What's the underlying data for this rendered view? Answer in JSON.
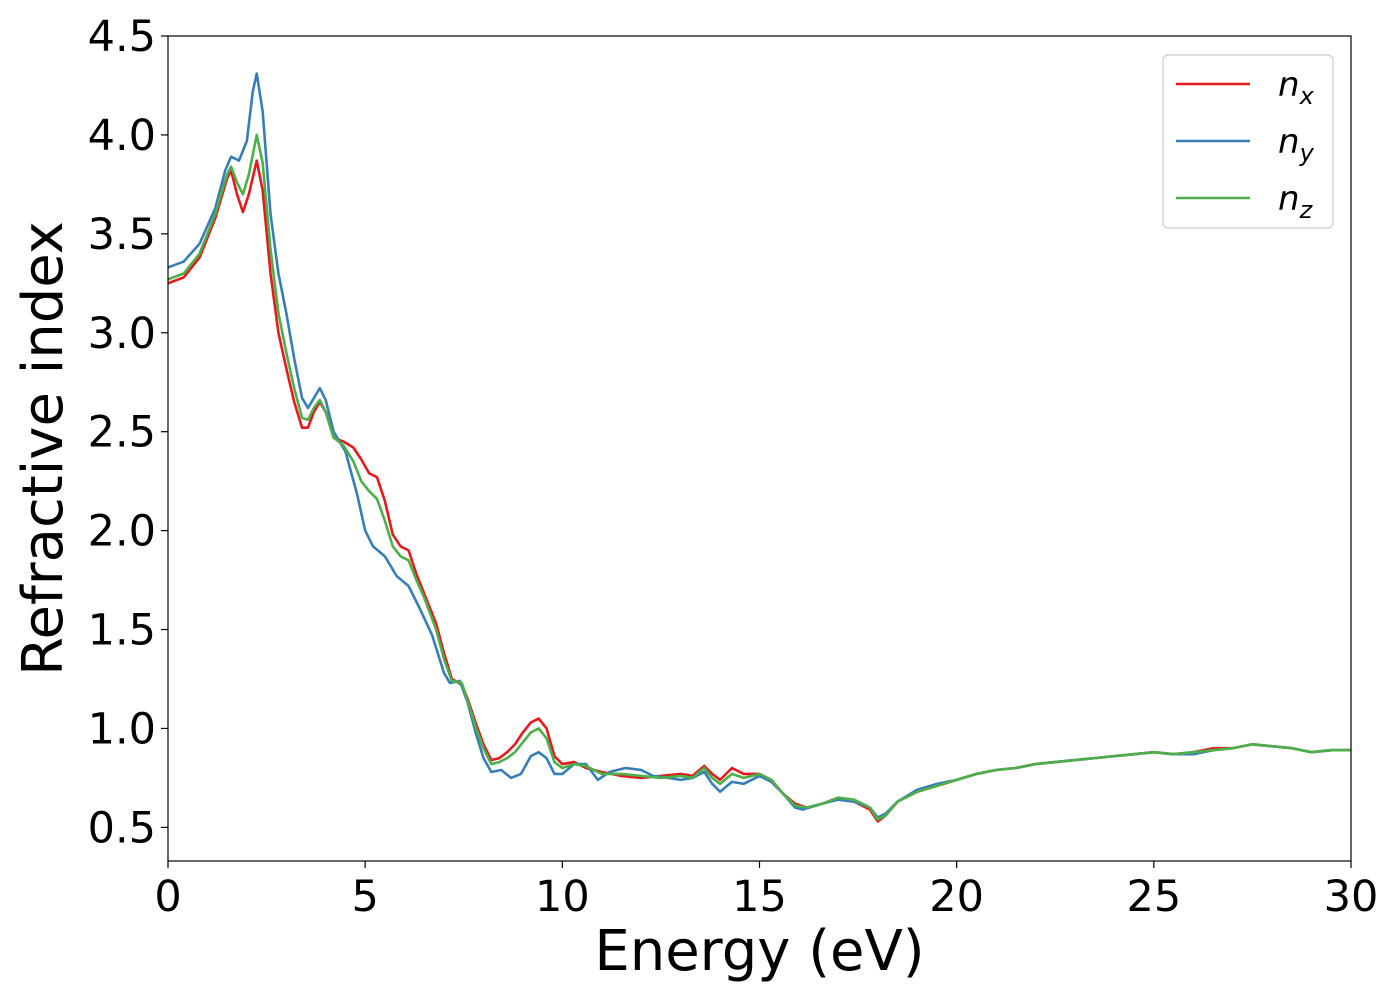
{
  "chart_data": {
    "type": "line",
    "title": "",
    "xlabel": "Energy (eV)",
    "ylabel": "Refractive index",
    "xlim": [
      0,
      30
    ],
    "ylim": [
      0.33,
      4.5
    ],
    "xticks": [
      "0",
      "5",
      "10",
      "15",
      "20",
      "25",
      "30"
    ],
    "yticks": [
      "0.5",
      "1.0",
      "1.5",
      "2.0",
      "2.5",
      "3.0",
      "3.5",
      "4.0",
      "4.5"
    ],
    "grid": false,
    "legend_position": "top-right",
    "series": [
      {
        "name": "n",
        "subscript": "x",
        "color": "#e41a1c",
        "points": [
          [
            0,
            3.25
          ],
          [
            0.4,
            3.28
          ],
          [
            0.8,
            3.38
          ],
          [
            1.2,
            3.58
          ],
          [
            1.5,
            3.78
          ],
          [
            1.6,
            3.82
          ],
          [
            1.75,
            3.7
          ],
          [
            1.9,
            3.61
          ],
          [
            2.05,
            3.7
          ],
          [
            2.25,
            3.87
          ],
          [
            2.4,
            3.72
          ],
          [
            2.6,
            3.3
          ],
          [
            2.8,
            3.0
          ],
          [
            3.0,
            2.82
          ],
          [
            3.2,
            2.65
          ],
          [
            3.4,
            2.52
          ],
          [
            3.55,
            2.52
          ],
          [
            3.7,
            2.6
          ],
          [
            3.85,
            2.65
          ],
          [
            4.0,
            2.6
          ],
          [
            4.2,
            2.47
          ],
          [
            4.45,
            2.45
          ],
          [
            4.7,
            2.42
          ],
          [
            4.9,
            2.36
          ],
          [
            5.1,
            2.29
          ],
          [
            5.3,
            2.27
          ],
          [
            5.5,
            2.15
          ],
          [
            5.7,
            1.98
          ],
          [
            5.9,
            1.92
          ],
          [
            6.1,
            1.9
          ],
          [
            6.3,
            1.78
          ],
          [
            6.5,
            1.68
          ],
          [
            6.8,
            1.53
          ],
          [
            7.0,
            1.38
          ],
          [
            7.2,
            1.25
          ],
          [
            7.45,
            1.22
          ],
          [
            7.6,
            1.15
          ],
          [
            7.8,
            1.03
          ],
          [
            8.0,
            0.92
          ],
          [
            8.2,
            0.84
          ],
          [
            8.4,
            0.85
          ],
          [
            8.6,
            0.88
          ],
          [
            8.8,
            0.92
          ],
          [
            9.0,
            0.98
          ],
          [
            9.2,
            1.03
          ],
          [
            9.4,
            1.05
          ],
          [
            9.6,
            1.0
          ],
          [
            9.8,
            0.86
          ],
          [
            10.0,
            0.82
          ],
          [
            10.3,
            0.83
          ],
          [
            10.6,
            0.8
          ],
          [
            11.0,
            0.78
          ],
          [
            11.5,
            0.76
          ],
          [
            12.0,
            0.75
          ],
          [
            12.5,
            0.76
          ],
          [
            13.0,
            0.77
          ],
          [
            13.3,
            0.76
          ],
          [
            13.6,
            0.81
          ],
          [
            13.8,
            0.77
          ],
          [
            14.0,
            0.74
          ],
          [
            14.3,
            0.8
          ],
          [
            14.6,
            0.77
          ],
          [
            15.0,
            0.77
          ],
          [
            15.3,
            0.74
          ],
          [
            15.6,
            0.67
          ],
          [
            15.9,
            0.62
          ],
          [
            16.2,
            0.6
          ],
          [
            16.6,
            0.62
          ],
          [
            17.0,
            0.65
          ],
          [
            17.4,
            0.63
          ],
          [
            17.8,
            0.59
          ],
          [
            18.0,
            0.53
          ],
          [
            18.2,
            0.56
          ],
          [
            18.5,
            0.63
          ],
          [
            19.0,
            0.68
          ],
          [
            19.5,
            0.71
          ],
          [
            20.0,
            0.74
          ],
          [
            20.5,
            0.77
          ],
          [
            21.0,
            0.79
          ],
          [
            21.5,
            0.8
          ],
          [
            22.0,
            0.82
          ],
          [
            22.5,
            0.83
          ],
          [
            23.0,
            0.84
          ],
          [
            23.5,
            0.85
          ],
          [
            24.0,
            0.86
          ],
          [
            24.5,
            0.87
          ],
          [
            25.0,
            0.88
          ],
          [
            25.5,
            0.87
          ],
          [
            26.0,
            0.88
          ],
          [
            26.5,
            0.9
          ],
          [
            27.0,
            0.9
          ],
          [
            27.5,
            0.92
          ],
          [
            28.0,
            0.91
          ],
          [
            28.5,
            0.9
          ],
          [
            29.0,
            0.88
          ],
          [
            29.5,
            0.89
          ],
          [
            30.0,
            0.89
          ]
        ]
      },
      {
        "name": "n",
        "subscript": "y",
        "color": "#377eb8",
        "points": [
          [
            0,
            3.33
          ],
          [
            0.4,
            3.36
          ],
          [
            0.8,
            3.45
          ],
          [
            1.2,
            3.63
          ],
          [
            1.45,
            3.82
          ],
          [
            1.6,
            3.89
          ],
          [
            1.8,
            3.87
          ],
          [
            2.0,
            3.97
          ],
          [
            2.15,
            4.22
          ],
          [
            2.25,
            4.31
          ],
          [
            2.4,
            4.12
          ],
          [
            2.6,
            3.6
          ],
          [
            2.8,
            3.3
          ],
          [
            3.0,
            3.1
          ],
          [
            3.2,
            2.87
          ],
          [
            3.4,
            2.67
          ],
          [
            3.55,
            2.62
          ],
          [
            3.7,
            2.67
          ],
          [
            3.85,
            2.72
          ],
          [
            4.0,
            2.66
          ],
          [
            4.2,
            2.5
          ],
          [
            4.5,
            2.4
          ],
          [
            4.8,
            2.18
          ],
          [
            5.0,
            2.0
          ],
          [
            5.2,
            1.92
          ],
          [
            5.5,
            1.87
          ],
          [
            5.8,
            1.77
          ],
          [
            6.1,
            1.72
          ],
          [
            6.4,
            1.6
          ],
          [
            6.7,
            1.47
          ],
          [
            7.0,
            1.28
          ],
          [
            7.15,
            1.23
          ],
          [
            7.4,
            1.24
          ],
          [
            7.6,
            1.13
          ],
          [
            7.8,
            0.98
          ],
          [
            8.0,
            0.85
          ],
          [
            8.2,
            0.78
          ],
          [
            8.45,
            0.79
          ],
          [
            8.7,
            0.75
          ],
          [
            8.95,
            0.77
          ],
          [
            9.2,
            0.86
          ],
          [
            9.4,
            0.88
          ],
          [
            9.6,
            0.85
          ],
          [
            9.8,
            0.77
          ],
          [
            10.0,
            0.77
          ],
          [
            10.3,
            0.82
          ],
          [
            10.6,
            0.82
          ],
          [
            10.9,
            0.74
          ],
          [
            11.2,
            0.78
          ],
          [
            11.6,
            0.8
          ],
          [
            12.0,
            0.79
          ],
          [
            12.3,
            0.76
          ],
          [
            12.7,
            0.75
          ],
          [
            13.0,
            0.74
          ],
          [
            13.3,
            0.75
          ],
          [
            13.6,
            0.78
          ],
          [
            13.8,
            0.72
          ],
          [
            14.0,
            0.68
          ],
          [
            14.3,
            0.73
          ],
          [
            14.6,
            0.72
          ],
          [
            15.0,
            0.76
          ],
          [
            15.3,
            0.73
          ],
          [
            15.6,
            0.67
          ],
          [
            15.9,
            0.6
          ],
          [
            16.1,
            0.59
          ],
          [
            16.6,
            0.62
          ],
          [
            17.0,
            0.64
          ],
          [
            17.4,
            0.63
          ],
          [
            17.8,
            0.6
          ],
          [
            18.0,
            0.55
          ],
          [
            18.2,
            0.57
          ],
          [
            18.5,
            0.63
          ],
          [
            19.0,
            0.69
          ],
          [
            19.5,
            0.72
          ],
          [
            20.0,
            0.74
          ],
          [
            20.5,
            0.77
          ],
          [
            21.0,
            0.79
          ],
          [
            21.5,
            0.8
          ],
          [
            22.0,
            0.82
          ],
          [
            22.5,
            0.83
          ],
          [
            23.0,
            0.84
          ],
          [
            23.5,
            0.85
          ],
          [
            24.0,
            0.86
          ],
          [
            24.5,
            0.87
          ],
          [
            25.0,
            0.88
          ],
          [
            25.5,
            0.87
          ],
          [
            26.0,
            0.87
          ],
          [
            26.5,
            0.89
          ],
          [
            27.0,
            0.9
          ],
          [
            27.5,
            0.92
          ],
          [
            28.0,
            0.91
          ],
          [
            28.5,
            0.9
          ],
          [
            29.0,
            0.88
          ],
          [
            29.5,
            0.89
          ],
          [
            30.0,
            0.89
          ]
        ]
      },
      {
        "name": "n",
        "subscript": "z",
        "color": "#4daf4a",
        "points": [
          [
            0,
            3.27
          ],
          [
            0.4,
            3.3
          ],
          [
            0.8,
            3.4
          ],
          [
            1.2,
            3.6
          ],
          [
            1.5,
            3.8
          ],
          [
            1.6,
            3.84
          ],
          [
            1.75,
            3.76
          ],
          [
            1.9,
            3.7
          ],
          [
            2.05,
            3.8
          ],
          [
            2.25,
            4.0
          ],
          [
            2.4,
            3.86
          ],
          [
            2.6,
            3.42
          ],
          [
            2.8,
            3.1
          ],
          [
            3.0,
            2.9
          ],
          [
            3.2,
            2.72
          ],
          [
            3.4,
            2.57
          ],
          [
            3.55,
            2.56
          ],
          [
            3.7,
            2.62
          ],
          [
            3.85,
            2.66
          ],
          [
            4.0,
            2.6
          ],
          [
            4.2,
            2.47
          ],
          [
            4.45,
            2.43
          ],
          [
            4.7,
            2.35
          ],
          [
            4.9,
            2.25
          ],
          [
            5.1,
            2.2
          ],
          [
            5.3,
            2.16
          ],
          [
            5.5,
            2.05
          ],
          [
            5.7,
            1.92
          ],
          [
            5.9,
            1.87
          ],
          [
            6.1,
            1.85
          ],
          [
            6.3,
            1.75
          ],
          [
            6.5,
            1.66
          ],
          [
            6.8,
            1.5
          ],
          [
            7.0,
            1.35
          ],
          [
            7.2,
            1.24
          ],
          [
            7.45,
            1.23
          ],
          [
            7.6,
            1.14
          ],
          [
            7.8,
            1.01
          ],
          [
            8.0,
            0.9
          ],
          [
            8.2,
            0.82
          ],
          [
            8.4,
            0.83
          ],
          [
            8.6,
            0.85
          ],
          [
            8.8,
            0.88
          ],
          [
            9.0,
            0.93
          ],
          [
            9.2,
            0.98
          ],
          [
            9.4,
            1.0
          ],
          [
            9.6,
            0.95
          ],
          [
            9.8,
            0.83
          ],
          [
            10.0,
            0.8
          ],
          [
            10.3,
            0.82
          ],
          [
            10.6,
            0.81
          ],
          [
            11.0,
            0.77
          ],
          [
            11.5,
            0.77
          ],
          [
            12.0,
            0.76
          ],
          [
            12.5,
            0.75
          ],
          [
            13.0,
            0.76
          ],
          [
            13.3,
            0.75
          ],
          [
            13.6,
            0.8
          ],
          [
            13.8,
            0.75
          ],
          [
            14.0,
            0.72
          ],
          [
            14.3,
            0.77
          ],
          [
            14.6,
            0.75
          ],
          [
            15.0,
            0.77
          ],
          [
            15.3,
            0.74
          ],
          [
            15.6,
            0.67
          ],
          [
            15.9,
            0.61
          ],
          [
            16.2,
            0.6
          ],
          [
            16.6,
            0.62
          ],
          [
            17.0,
            0.65
          ],
          [
            17.4,
            0.64
          ],
          [
            17.8,
            0.6
          ],
          [
            18.0,
            0.54
          ],
          [
            18.2,
            0.56
          ],
          [
            18.5,
            0.63
          ],
          [
            19.0,
            0.68
          ],
          [
            19.5,
            0.71
          ],
          [
            20.0,
            0.74
          ],
          [
            20.5,
            0.77
          ],
          [
            21.0,
            0.79
          ],
          [
            21.5,
            0.8
          ],
          [
            22.0,
            0.82
          ],
          [
            22.5,
            0.83
          ],
          [
            23.0,
            0.84
          ],
          [
            23.5,
            0.85
          ],
          [
            24.0,
            0.86
          ],
          [
            24.5,
            0.87
          ],
          [
            25.0,
            0.88
          ],
          [
            25.5,
            0.87
          ],
          [
            26.0,
            0.88
          ],
          [
            26.5,
            0.89
          ],
          [
            27.0,
            0.9
          ],
          [
            27.5,
            0.92
          ],
          [
            28.0,
            0.91
          ],
          [
            28.5,
            0.9
          ],
          [
            29.0,
            0.88
          ],
          [
            29.5,
            0.89
          ],
          [
            30.0,
            0.89
          ]
        ]
      }
    ]
  }
}
